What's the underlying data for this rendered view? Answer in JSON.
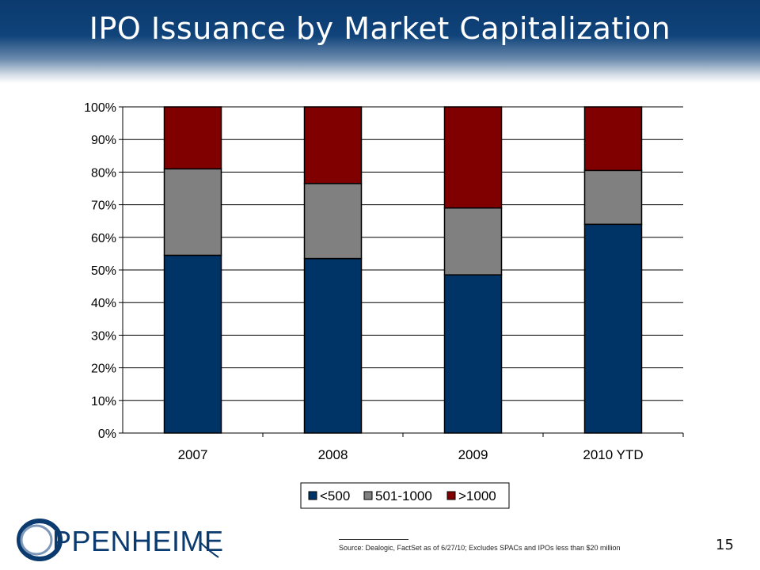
{
  "header": {
    "title": "IPO Issuance by Market Capitalization"
  },
  "chart_data": {
    "type": "bar",
    "stacked": true,
    "categories": [
      "2007",
      "2008",
      "2009",
      "2010 YTD"
    ],
    "series": [
      {
        "name": "<500",
        "color": "#003366",
        "values": [
          54.5,
          53.5,
          48.5,
          64
        ]
      },
      {
        "name": "501-1000",
        "color": "#808080",
        "values": [
          26.5,
          23,
          20.5,
          16.5
        ]
      },
      {
        "name": ">1000",
        "color": "#800000",
        "values": [
          19,
          23.5,
          31,
          19.5
        ]
      }
    ],
    "ylim": [
      0,
      100
    ],
    "yticks": [
      "0%",
      "10%",
      "20%",
      "30%",
      "40%",
      "50%",
      "60%",
      "70%",
      "80%",
      "90%",
      "100%"
    ],
    "grid": true,
    "legend": "bottom"
  },
  "footer": {
    "logo_text": "PPENHEIMER",
    "source": "Source: Dealogic, FactSet as of 6/27/10; Excludes SPACs and IPOs less than $20 million",
    "page_number": "15"
  }
}
